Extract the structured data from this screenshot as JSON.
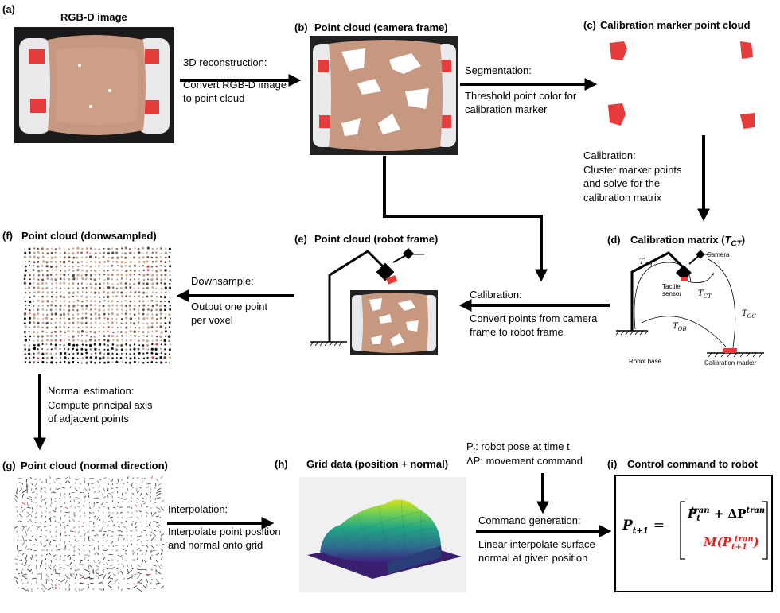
{
  "panels": {
    "a": {
      "label": "(a)",
      "title": "RGB-D image"
    },
    "b": {
      "label": "(b)",
      "title": "Point cloud (camera frame)"
    },
    "c": {
      "label": "(c)",
      "title": "Calibration marker point cloud"
    },
    "d": {
      "label": "(d)",
      "title": "Calibration matrix (",
      "title_var": "T",
      "title_sub": "CT",
      "title_end": ")",
      "labels": {
        "camera": "Camera",
        "tactile_1": "Tactile",
        "tactile_2": "sensor",
        "robot_base": "Robot base",
        "calibration_marker": "Calibration marker",
        "t_tb": "T",
        "t_tb_sub": "TB",
        "t_ct": "T",
        "t_ct_sub": "CT",
        "t_oc": "T",
        "t_oc_sub": "OC",
        "t_ob": "T",
        "t_ob_sub": "OB"
      }
    },
    "e": {
      "label": "(e)",
      "title": "Point cloud (robot frame)"
    },
    "f": {
      "label": "(f)",
      "title": "Point cloud (donwsampled)"
    },
    "g": {
      "label": "(g)",
      "title": "Point cloud (normal direction)"
    },
    "h": {
      "label": "(h)",
      "title": "Grid data (position + normal)"
    },
    "i": {
      "label": "(i)",
      "title": "Control command to robot"
    }
  },
  "steps": {
    "reconstruction": {
      "head": "3D reconstruction:",
      "lines": [
        "Convert RGB-D image",
        "to point cloud"
      ]
    },
    "segmentation": {
      "head": "Segmentation:",
      "lines": [
        "Threshold point color for",
        "calibration marker"
      ]
    },
    "calibration_c": {
      "head": "Calibration:",
      "lines": [
        "Cluster marker points",
        "and solve for the",
        "calibration matrix"
      ]
    },
    "calibration_e": {
      "head": "Calibration:",
      "lines": [
        "Convert points from camera",
        "frame to robot frame"
      ]
    },
    "downsample": {
      "head": "Downsample:",
      "lines": [
        "Output one point",
        "per voxel"
      ]
    },
    "normal": {
      "head": "Normal estimation:",
      "lines": [
        "Compute principal axis",
        "of adjacent points"
      ]
    },
    "interpolation": {
      "head": "Interpolation:",
      "lines": [
        "Interpolate point position",
        "and normal onto grid"
      ]
    },
    "command": {
      "head": "Command generation:",
      "lines": [
        "Linear interpolate surface",
        "normal at given position"
      ]
    }
  },
  "inputs": {
    "pt_symbol": "P",
    "pt_sub": "t",
    "pt_text": ": robot pose at time t",
    "dp_text": "ΔP: movement command"
  },
  "formula": {
    "lhs": "P",
    "lhs_sub": "t+1",
    "eq": "=",
    "top_p": "P",
    "top_sub": "t",
    "top_sup": "tran",
    "plus": " + ΔP",
    "plus_sup": "tran",
    "bot_m": "M(P",
    "bot_sub": "t+1",
    "bot_sup": "tran",
    "bot_end": ")",
    "color_red": "#e8201c"
  },
  "colors": {
    "skin": "#c99a82",
    "marker_red": "#e02a2a",
    "arrow": "#000000"
  }
}
